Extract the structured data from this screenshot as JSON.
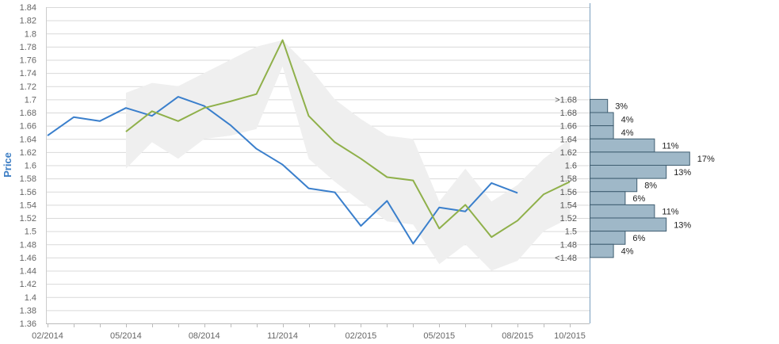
{
  "chart_data": {
    "type": "line",
    "xlabel": "",
    "ylabel": "Price",
    "ylim": [
      1.36,
      1.84
    ],
    "y_ticks": [
      1.36,
      1.38,
      1.4,
      1.42,
      1.44,
      1.46,
      1.48,
      1.5,
      1.52,
      1.54,
      1.56,
      1.58,
      1.6,
      1.62,
      1.64,
      1.66,
      1.68,
      1.7,
      1.72,
      1.74,
      1.76,
      1.78,
      1.8,
      1.82,
      1.84
    ],
    "y_tick_labels": [
      "1.36",
      "1.38",
      "1.4",
      "1.42",
      "1.44",
      "1.46",
      "1.48",
      "1.5",
      "1.52",
      "1.54",
      "1.56",
      "1.58",
      "1.6",
      "1.62",
      "1.64",
      "1.66",
      "1.68",
      "1.7",
      "1.72",
      "1.74",
      "1.76",
      "1.78",
      "1.8",
      "1.82",
      "1.84"
    ],
    "x_ticks": [
      "2014-02",
      "2014-03",
      "2014-04",
      "2014-05",
      "2014-06",
      "2014-07",
      "2014-08",
      "2014-09",
      "2014-10",
      "2014-11",
      "2014-12",
      "2015-01",
      "2015-02",
      "2015-03",
      "2015-04",
      "2015-05",
      "2015-06",
      "2015-07",
      "2015-08",
      "2015-09",
      "2015-10"
    ],
    "x_tick_labels": [
      "02/2014",
      "05/2014",
      "08/2014",
      "11/2014",
      "02/2015",
      "05/2015",
      "08/2015",
      "10/2015"
    ],
    "x_tick_label_dates": [
      "2014-02",
      "2014-05",
      "2014-08",
      "2014-11",
      "2015-02",
      "2015-05",
      "2015-08",
      "2015-10"
    ],
    "grid": true,
    "series": [
      {
        "color": "#3a7fcc",
        "points": [
          [
            "2014-02",
            1.645
          ],
          [
            "2014-03",
            1.673
          ],
          [
            "2014-04",
            1.667
          ],
          [
            "2014-05",
            1.687
          ],
          [
            "2014-06",
            1.675
          ],
          [
            "2014-07",
            1.704
          ],
          [
            "2014-08",
            1.69
          ],
          [
            "2014-09",
            1.661
          ],
          [
            "2014-10",
            1.625
          ],
          [
            "2014-11",
            1.601
          ],
          [
            "2014-12",
            1.565
          ],
          [
            "2015-01",
            1.559
          ],
          [
            "2015-02",
            1.508
          ],
          [
            "2015-03",
            1.546
          ],
          [
            "2015-04",
            1.481
          ],
          [
            "2015-05",
            1.536
          ],
          [
            "2015-06",
            1.53
          ],
          [
            "2015-07",
            1.573
          ],
          [
            "2015-08",
            1.558
          ]
        ]
      },
      {
        "color": "#8fb04a",
        "points": [
          [
            "2014-05",
            1.651
          ],
          [
            "2014-06",
            1.682
          ],
          [
            "2014-07",
            1.667
          ],
          [
            "2014-08",
            1.687
          ],
          [
            "2014-09",
            1.697
          ],
          [
            "2014-10",
            1.708
          ],
          [
            "2014-11",
            1.79
          ],
          [
            "2014-12",
            1.675
          ],
          [
            "2015-01",
            1.635
          ],
          [
            "2015-02",
            1.61
          ],
          [
            "2015-03",
            1.582
          ],
          [
            "2015-04",
            1.577
          ],
          [
            "2015-05",
            1.504
          ],
          [
            "2015-06",
            1.54
          ],
          [
            "2015-07",
            1.491
          ],
          [
            "2015-08",
            1.516
          ],
          [
            "2015-09",
            1.556
          ],
          [
            "2015-10",
            1.575
          ]
        ]
      }
    ],
    "band": {
      "color": "#efefef",
      "upper": [
        [
          "2014-05",
          1.71
        ],
        [
          "2014-06",
          1.725
        ],
        [
          "2014-07",
          1.72
        ],
        [
          "2014-08",
          1.74
        ],
        [
          "2014-09",
          1.76
        ],
        [
          "2014-10",
          1.78
        ],
        [
          "2014-11",
          1.79
        ],
        [
          "2014-12",
          1.75
        ],
        [
          "2015-01",
          1.7
        ],
        [
          "2015-02",
          1.67
        ],
        [
          "2015-03",
          1.645
        ],
        [
          "2015-04",
          1.64
        ],
        [
          "2015-05",
          1.545
        ],
        [
          "2015-06",
          1.595
        ],
        [
          "2015-07",
          1.545
        ],
        [
          "2015-08",
          1.57
        ],
        [
          "2015-09",
          1.61
        ],
        [
          "2015-10",
          1.64
        ]
      ],
      "lower": [
        [
          "2014-05",
          1.595
        ],
        [
          "2014-06",
          1.635
        ],
        [
          "2014-07",
          1.61
        ],
        [
          "2014-08",
          1.64
        ],
        [
          "2014-09",
          1.645
        ],
        [
          "2014-10",
          1.655
        ],
        [
          "2014-11",
          1.75
        ],
        [
          "2014-12",
          1.61
        ],
        [
          "2015-01",
          1.575
        ],
        [
          "2015-02",
          1.545
        ],
        [
          "2015-03",
          1.515
        ],
        [
          "2015-04",
          1.51
        ],
        [
          "2015-05",
          1.45
        ],
        [
          "2015-06",
          1.48
        ],
        [
          "2015-07",
          1.44
        ],
        [
          "2015-08",
          1.455
        ],
        [
          "2015-09",
          1.5
        ],
        [
          "2015-10",
          1.52
        ]
      ]
    },
    "distribution": {
      "color": "#9fb8c8",
      "bars": [
        {
          "label": ">1.68",
          "lo": 1.68,
          "hi": 1.7,
          "pct": 3,
          "pct_label": "3%"
        },
        {
          "label": "1.68",
          "lo": 1.66,
          "hi": 1.68,
          "pct": 4,
          "pct_label": "4%"
        },
        {
          "label": "1.66",
          "lo": 1.64,
          "hi": 1.66,
          "pct": 4,
          "pct_label": "4%"
        },
        {
          "label": "1.64",
          "lo": 1.62,
          "hi": 1.64,
          "pct": 11,
          "pct_label": "11%"
        },
        {
          "label": "1.62",
          "lo": 1.6,
          "hi": 1.62,
          "pct": 17,
          "pct_label": "17%"
        },
        {
          "label": "1.6",
          "lo": 1.58,
          "hi": 1.6,
          "pct": 13,
          "pct_label": "13%"
        },
        {
          "label": "1.58",
          "lo": 1.56,
          "hi": 1.58,
          "pct": 8,
          "pct_label": "8%"
        },
        {
          "label": "1.56",
          "lo": 1.54,
          "hi": 1.56,
          "pct": 6,
          "pct_label": "6%"
        },
        {
          "label": "1.54",
          "lo": 1.52,
          "hi": 1.54,
          "pct": 11,
          "pct_label": "11%"
        },
        {
          "label": "1.52",
          "lo": 1.5,
          "hi": 1.52,
          "pct": 13,
          "pct_label": "13%"
        },
        {
          "label": "1.5",
          "lo": 1.48,
          "hi": 1.5,
          "pct": 6,
          "pct_label": "6%"
        },
        {
          "label": "1.48",
          "lo": 1.46,
          "hi": 1.48,
          "pct": 4,
          "pct_label": "4%"
        }
      ],
      "bottom_label": "<1.48"
    }
  }
}
